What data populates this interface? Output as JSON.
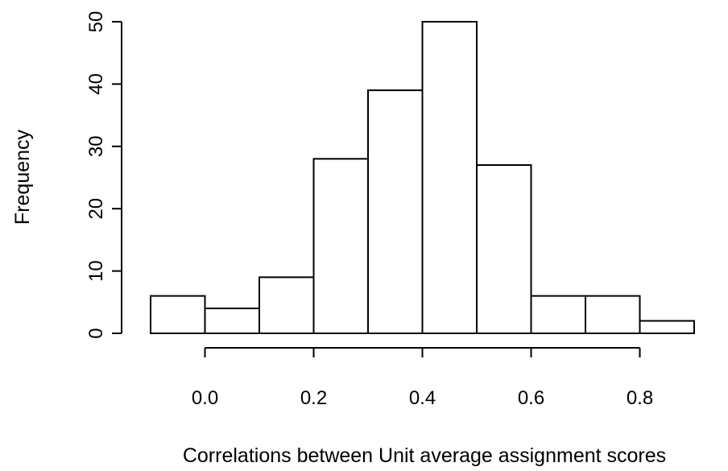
{
  "chart_data": {
    "type": "bar",
    "title": "",
    "xlabel": "Correlations between Unit average assignment scores",
    "ylabel": "Frequency",
    "bin_edges": [
      -0.1,
      0.0,
      0.1,
      0.2,
      0.3,
      0.4,
      0.5,
      0.6,
      0.7,
      0.8,
      0.9
    ],
    "values": [
      6,
      4,
      9,
      28,
      39,
      50,
      27,
      6,
      6,
      2
    ],
    "x_ticks": [
      0.0,
      0.2,
      0.4,
      0.6,
      0.8
    ],
    "x_tick_labels": [
      "0.0",
      "0.2",
      "0.4",
      "0.6",
      "0.8"
    ],
    "y_ticks": [
      0,
      10,
      20,
      30,
      40,
      50
    ],
    "y_tick_labels": [
      "0",
      "10",
      "20",
      "30",
      "40",
      "50"
    ],
    "xlim": [
      -0.1,
      0.9
    ],
    "ylim": [
      0,
      50
    ],
    "grid": false,
    "legend": "none",
    "colors": {
      "bar_fill": "#ffffff",
      "stroke": "#000000",
      "background": "#ffffff"
    }
  }
}
